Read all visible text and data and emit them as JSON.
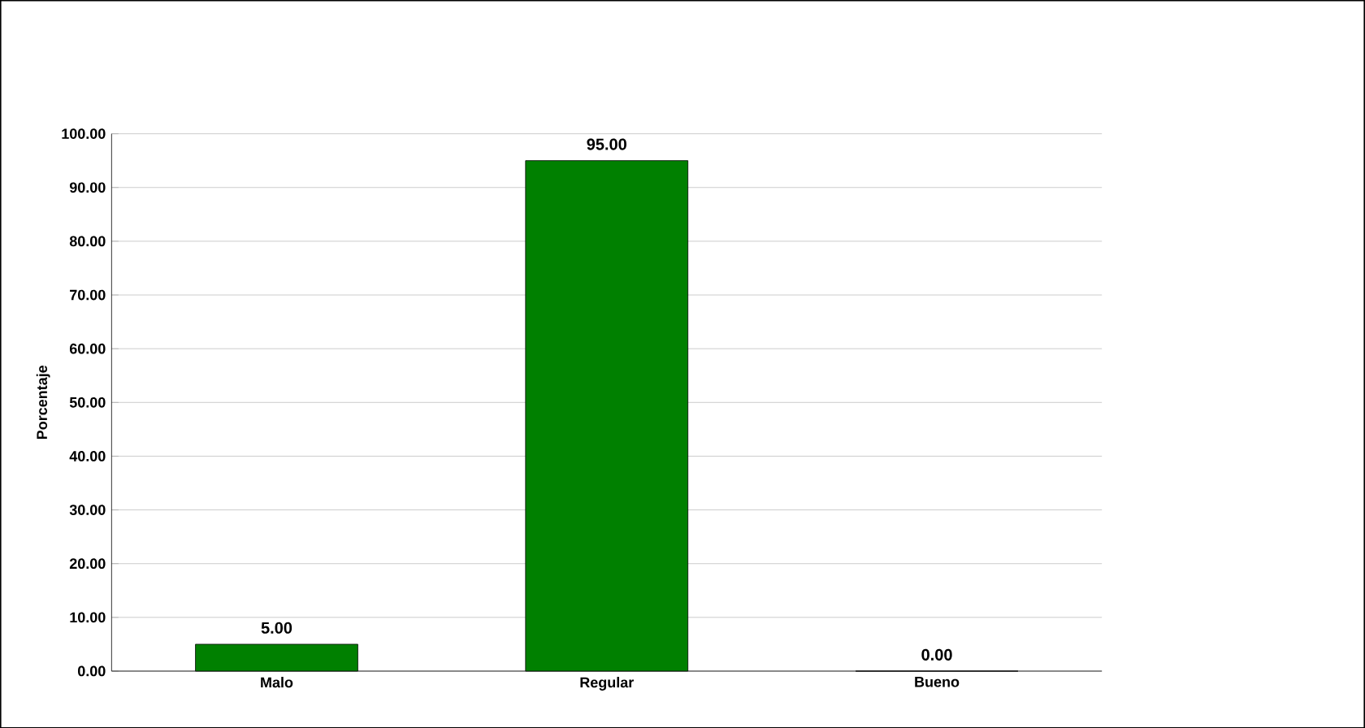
{
  "chart_data": {
    "type": "bar",
    "ylabel": "Porcentaje",
    "categories": [
      "Malo",
      "Regular",
      "Bueno"
    ],
    "values": [
      5,
      95,
      0
    ],
    "color": "#008000",
    "value_labels": [
      "5.00",
      "95.00",
      "0.00"
    ],
    "ylim": [
      0,
      100
    ],
    "yticks": [
      {
        "value": 0,
        "label": "0.00"
      },
      {
        "value": 10,
        "label": "10.00"
      },
      {
        "value": 20,
        "label": "20.00"
      },
      {
        "value": 30,
        "label": "30.00"
      },
      {
        "value": 40,
        "label": "40.00"
      },
      {
        "value": 50,
        "label": "50.00"
      },
      {
        "value": 60,
        "label": "60.00"
      },
      {
        "value": 70,
        "label": "70.00"
      },
      {
        "value": 80,
        "label": "80.00"
      },
      {
        "value": 90,
        "label": "90.00"
      },
      {
        "value": 100,
        "label": "100.00"
      }
    ],
    "grid": "y"
  }
}
